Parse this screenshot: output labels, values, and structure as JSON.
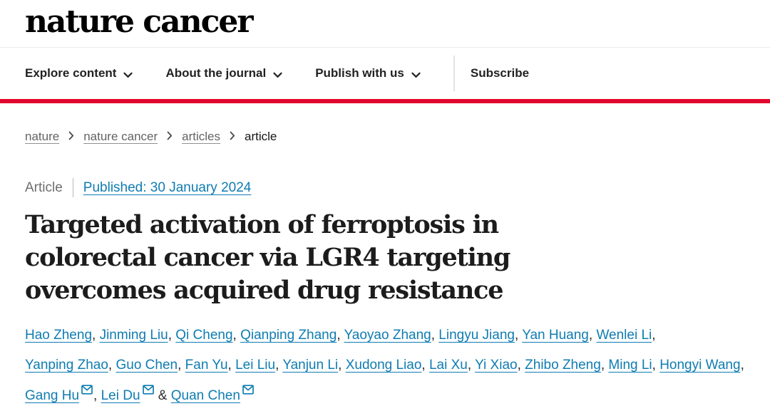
{
  "header": {
    "logo": "nature cancer"
  },
  "nav": {
    "items": [
      {
        "label": "Explore content",
        "has_dropdown": true
      },
      {
        "label": "About the journal",
        "has_dropdown": true
      },
      {
        "label": "Publish with us",
        "has_dropdown": true
      },
      {
        "label": "Subscribe",
        "has_dropdown": false
      }
    ]
  },
  "breadcrumb": {
    "items": [
      "nature",
      "nature cancer",
      "articles",
      "article"
    ]
  },
  "article": {
    "type_label": "Article",
    "published_label": "Published: 30 January 2024",
    "title": "Targeted activation of ferroptosis in colorectal cancer via LGR4 targeting overcomes acquired drug resistance",
    "authors": [
      {
        "name": "Hao Zheng",
        "has_email": false
      },
      {
        "name": "Jinming Liu",
        "has_email": false
      },
      {
        "name": "Qi Cheng",
        "has_email": false
      },
      {
        "name": "Qianping Zhang",
        "has_email": false
      },
      {
        "name": "Yaoyao Zhang",
        "has_email": false
      },
      {
        "name": "Lingyu Jiang",
        "has_email": false
      },
      {
        "name": "Yan Huang",
        "has_email": false
      },
      {
        "name": "Wenlei Li",
        "has_email": false
      },
      {
        "name": "Yanping Zhao",
        "has_email": false
      },
      {
        "name": "Guo Chen",
        "has_email": false
      },
      {
        "name": "Fan Yu",
        "has_email": false
      },
      {
        "name": "Lei Liu",
        "has_email": false
      },
      {
        "name": "Yanjun Li",
        "has_email": false
      },
      {
        "name": "Xudong Liao",
        "has_email": false
      },
      {
        "name": "Lai Xu",
        "has_email": false
      },
      {
        "name": "Yi Xiao",
        "has_email": false
      },
      {
        "name": "Zhibo Zheng",
        "has_email": false
      },
      {
        "name": "Ming Li",
        "has_email": false
      },
      {
        "name": "Hongyi Wang",
        "has_email": false
      },
      {
        "name": "Gang Hu",
        "has_email": true
      },
      {
        "name": "Lei Du",
        "has_email": true
      },
      {
        "name": "Quan Chen",
        "has_email": true
      }
    ],
    "separator": ", ",
    "last_separator": " & "
  },
  "icons": {
    "dropdown": "chevron-down-icon",
    "breadcrumb_separator": "chevron-right-icon",
    "email": "envelope-icon"
  },
  "colors": {
    "brand_red": "#e2062c",
    "link_blue": "#0f7cb2"
  }
}
